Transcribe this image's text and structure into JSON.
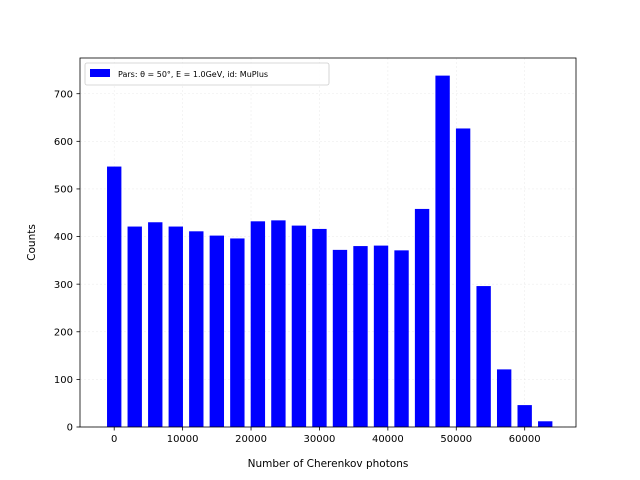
{
  "chart_data": {
    "type": "bar",
    "title": "",
    "xlabel": "Number of Cherenkov photons",
    "ylabel": "Counts",
    "xlim": [
      -5000,
      67500
    ],
    "ylim": [
      0,
      775
    ],
    "xticks": [
      0,
      10000,
      20000,
      30000,
      40000,
      50000,
      60000
    ],
    "xtick_labels": [
      "0",
      "10000",
      "20000",
      "30000",
      "40000",
      "50000",
      "60000"
    ],
    "yticks": [
      0,
      100,
      200,
      300,
      400,
      500,
      600,
      700
    ],
    "ytick_labels": [
      "0",
      "100",
      "200",
      "300",
      "400",
      "500",
      "600",
      "700"
    ],
    "grid": true,
    "legend_position": "top-left",
    "bar_color": "#0000ff",
    "bar_width": 2100,
    "series": [
      {
        "name": "Pars: θ = 50°, E = 1.0GeV, id: MuPlus",
        "x": [
          0,
          3000,
          6000,
          9000,
          12000,
          15000,
          18000,
          21000,
          24000,
          27000,
          30000,
          33000,
          36000,
          39000,
          42000,
          45000,
          48000,
          51000,
          54000,
          57000,
          60000,
          63000
        ],
        "values": [
          547,
          421,
          430,
          421,
          411,
          402,
          396,
          432,
          434,
          423,
          416,
          372,
          380,
          381,
          371,
          458,
          738,
          627,
          296,
          121,
          46,
          12
        ]
      }
    ]
  }
}
